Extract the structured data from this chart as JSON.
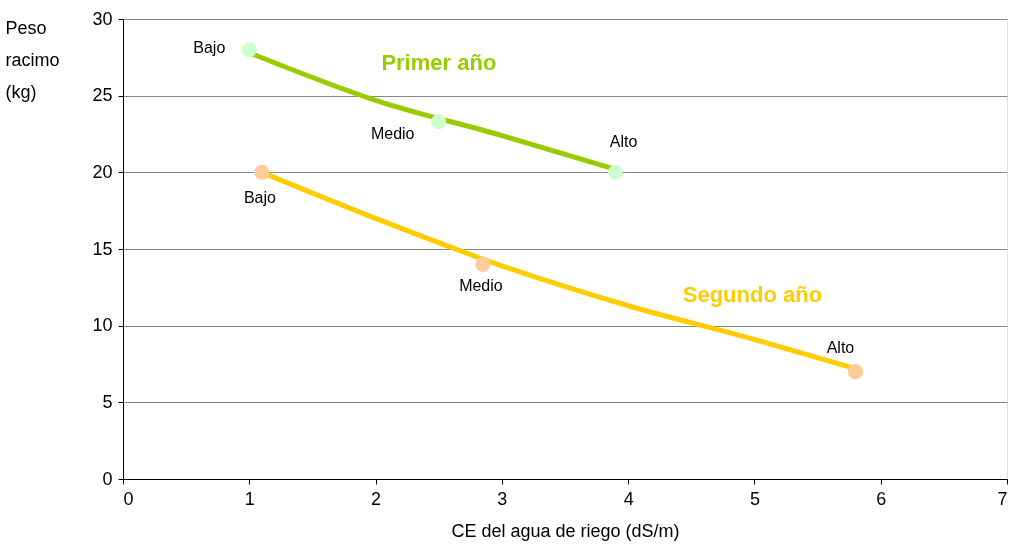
{
  "chart_data": {
    "type": "line",
    "xlabel": "CE del agua de riego (dS/m)",
    "ylabel": "Peso racimo (kg)",
    "xlim": [
      0,
      7
    ],
    "xticks": [
      0,
      1,
      2,
      3,
      4,
      5,
      6,
      7
    ],
    "ylim": [
      0,
      30
    ],
    "yticks": [
      0,
      5,
      10,
      15,
      20,
      25,
      30
    ],
    "grid": "y",
    "marker": "circle",
    "series": [
      {
        "name": "Primer año",
        "marker": "none",
        "color": "#99cc00",
        "x": [
          1,
          2,
          3,
          3.9
        ],
        "values": [
          27.8,
          24.7,
          22.4,
          20.2
        ]
      },
      {
        "name": "Segundo año",
        "marker": "none",
        "color": "#ffcc00",
        "x": [
          1.1,
          2,
          3,
          4,
          5,
          5.8
        ],
        "values": [
          20,
          17.0,
          13.9,
          11.3,
          9.1,
          7.2
        ]
      },
      {
        "type": "scatter",
        "color": "#ccffcc",
        "x": [
          1,
          2.5,
          3.9
        ],
        "values": [
          28,
          23.3,
          20
        ]
      },
      {
        "type": "scatter",
        "color": "#ffcc99",
        "x": [
          1.1,
          2.85,
          5.8
        ],
        "values": [
          20,
          14,
          7
        ]
      }
    ],
    "annotations": [
      {
        "text": "Bajo",
        "x": 1,
        "y": 28
      },
      {
        "text": "Medio",
        "x": 2.5,
        "y": 23.3
      },
      {
        "text": "Alto",
        "x": 3.9,
        "y": 20
      },
      {
        "text": "Bajo",
        "x": 1.1,
        "y": 20
      },
      {
        "text": "Medio",
        "x": 2.85,
        "y": 14
      },
      {
        "text": "Alto",
        "x": 5.8,
        "y": 7
      }
    ]
  }
}
